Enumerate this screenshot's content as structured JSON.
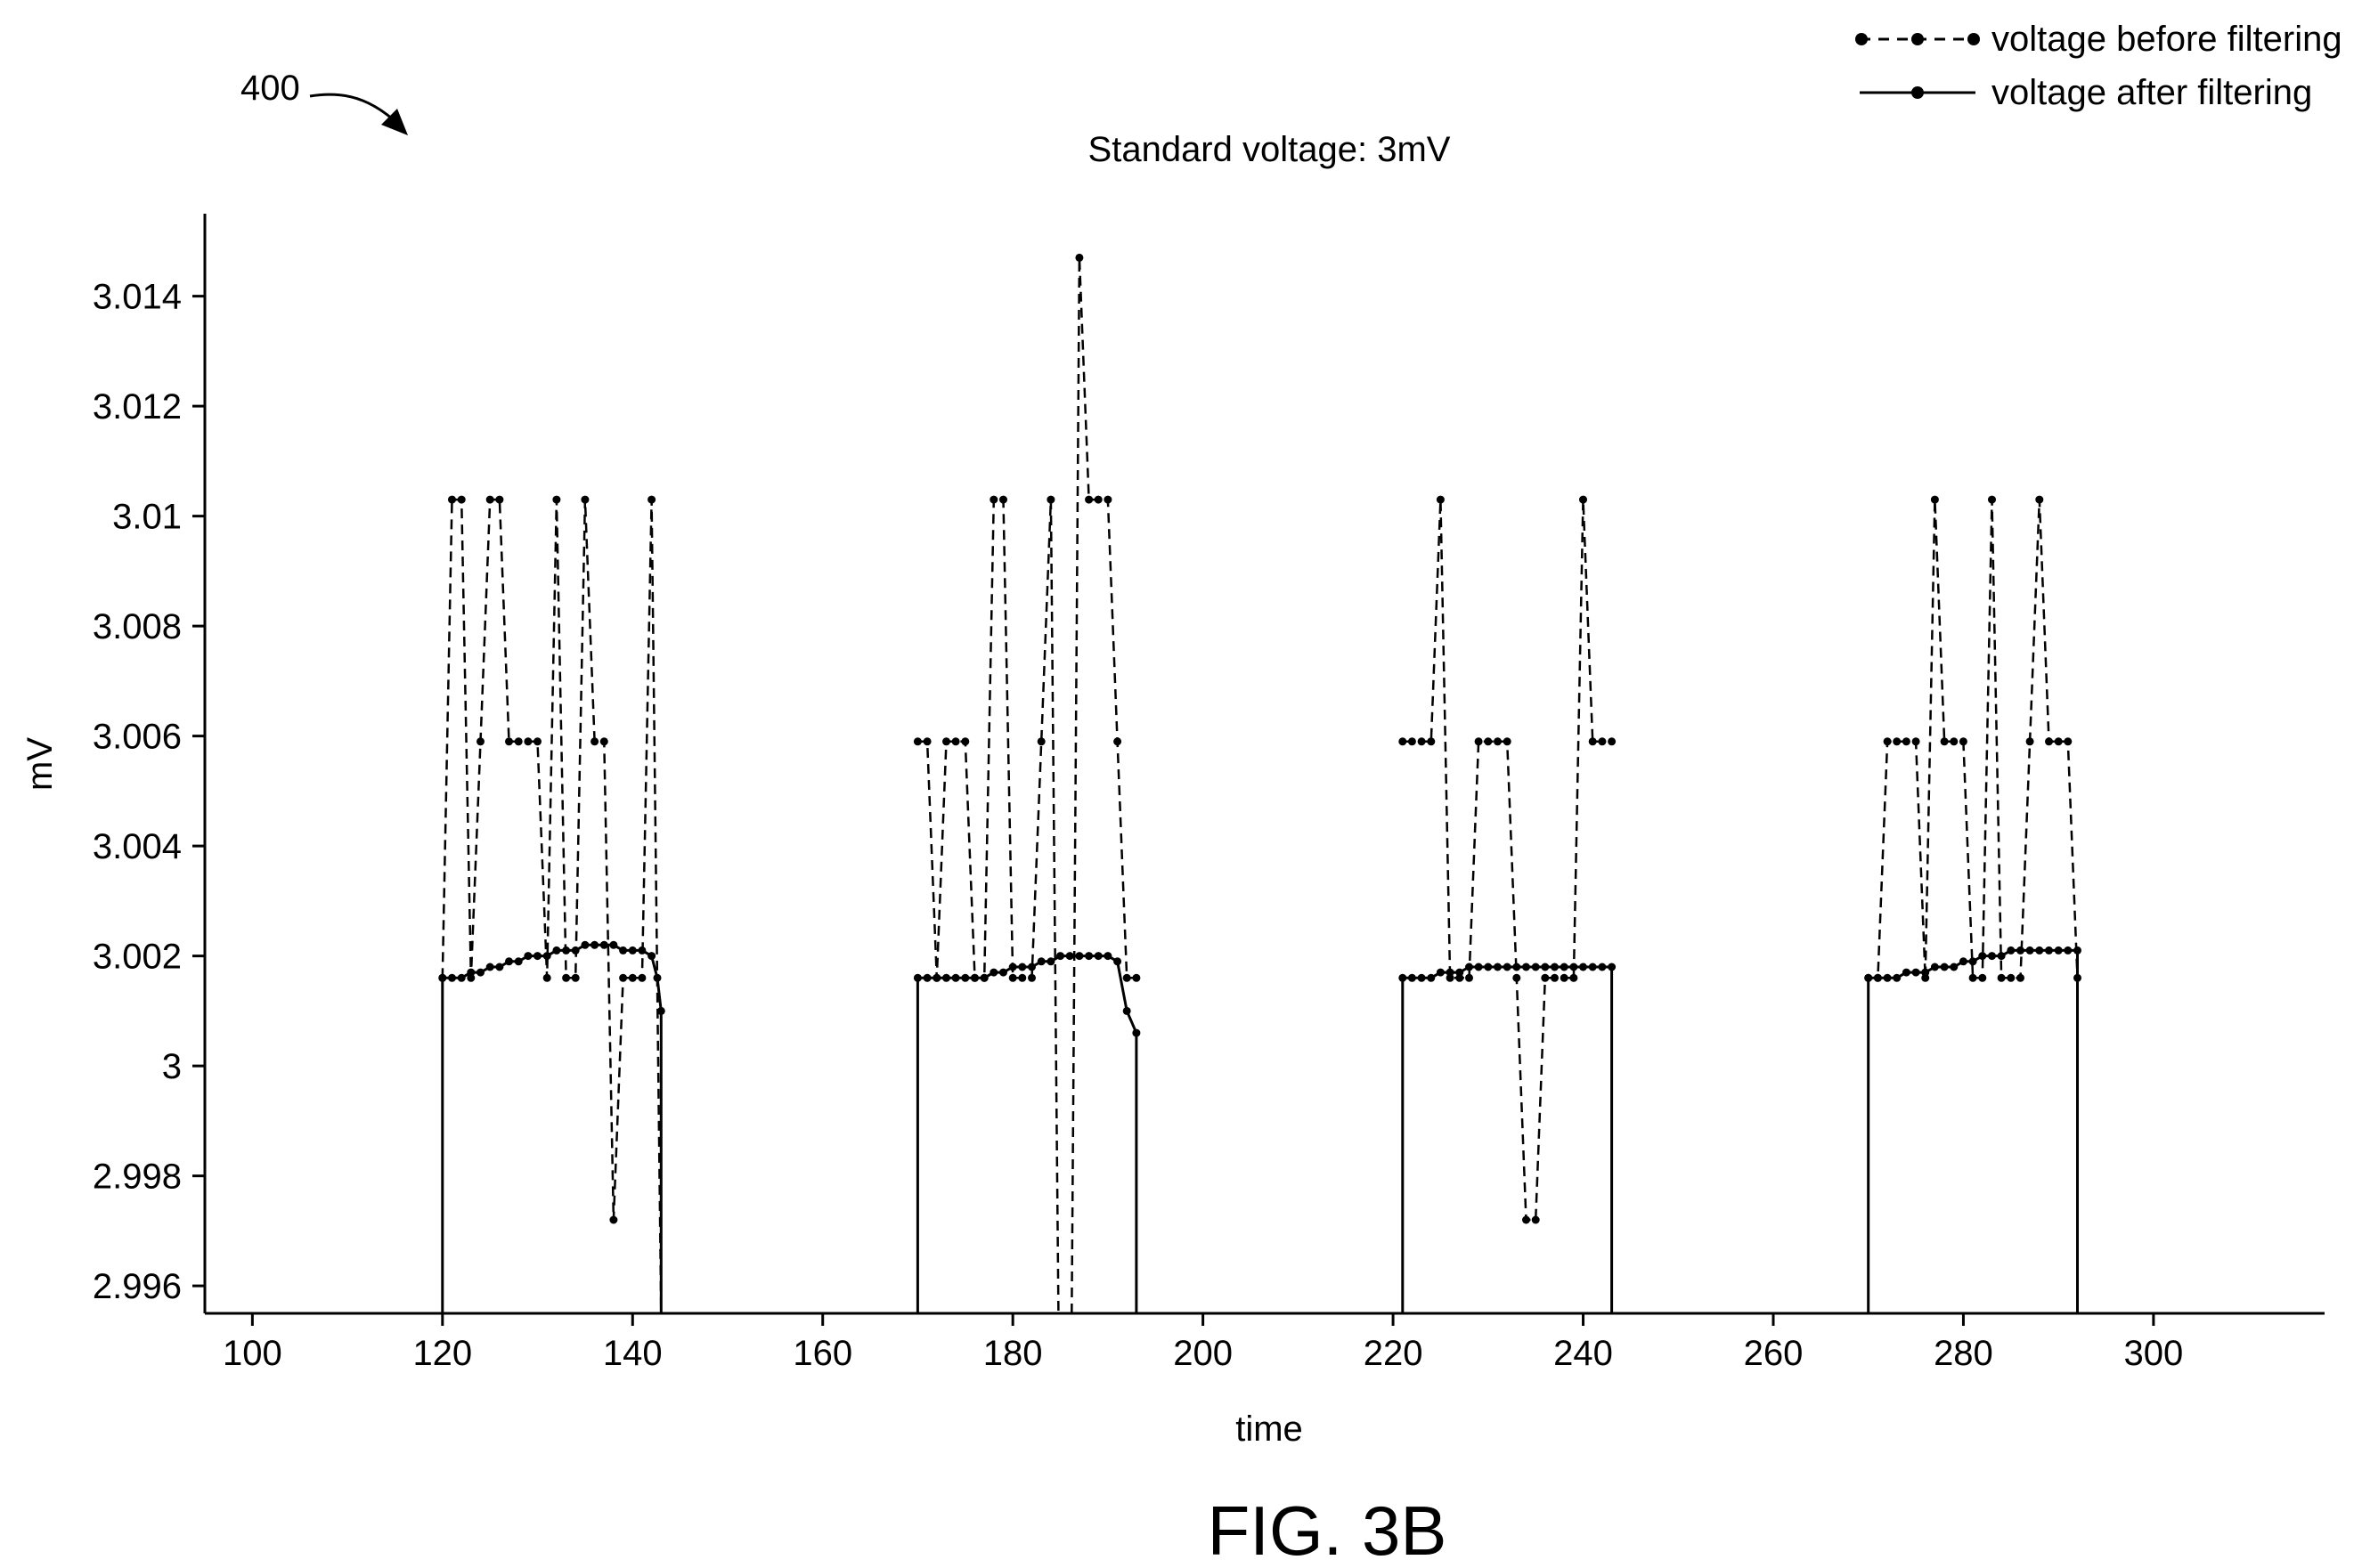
{
  "figure": {
    "ref_label": "400",
    "caption": "FIG. 3B"
  },
  "chart_data": {
    "type": "line",
    "title": "Standard voltage: 3mV",
    "xlabel": "time",
    "ylabel": "mV",
    "xlim": [
      95,
      318
    ],
    "ylim": [
      2.9955,
      3.0155
    ],
    "xticks": [
      100,
      120,
      140,
      160,
      180,
      200,
      220,
      240,
      260,
      280,
      300
    ],
    "xtick_labels": [
      "100",
      "120",
      "140",
      "160",
      "180",
      "200",
      "220",
      "240",
      "260",
      "280",
      "300"
    ],
    "yticks": [
      2.996,
      2.998,
      3.0,
      3.002,
      3.004,
      3.006,
      3.008,
      3.01,
      3.012,
      3.014
    ],
    "ytick_labels": [
      "2.996",
      "2.998",
      "3",
      "3.002",
      "3.004",
      "3.006",
      "3.008",
      "3.01",
      "3.012",
      "3.014"
    ],
    "grid": false,
    "legend": "top-right",
    "series": [
      {
        "name": "voltage before filtering",
        "style": "dashed",
        "color": "#000000",
        "segments": [
          [
            [
              120,
              3.0016
            ],
            [
              121,
              3.0103
            ],
            [
              122,
              3.0103
            ],
            [
              123,
              3.0016
            ],
            [
              124,
              3.0059
            ],
            [
              125,
              3.0103
            ],
            [
              126,
              3.0103
            ],
            [
              127,
              3.0059
            ],
            [
              128,
              3.0059
            ],
            [
              129,
              3.0059
            ],
            [
              130,
              3.0059
            ],
            [
              131,
              3.0016
            ],
            [
              132,
              3.0103
            ],
            [
              133,
              3.0016
            ],
            [
              134,
              3.0016
            ],
            [
              135,
              3.0103
            ],
            [
              136,
              3.0059
            ],
            [
              137,
              3.0059
            ],
            [
              138,
              2.9972
            ],
            [
              139,
              3.0016
            ],
            [
              140,
              3.0016
            ],
            [
              141,
              3.0016
            ],
            [
              142,
              3.0103
            ],
            [
              143,
              2.9955
            ]
          ],
          [
            [
              170,
              3.0059
            ],
            [
              171,
              3.0059
            ],
            [
              172,
              3.0016
            ],
            [
              173,
              3.0059
            ],
            [
              174,
              3.0059
            ],
            [
              175,
              3.0059
            ],
            [
              176,
              3.0016
            ],
            [
              177,
              3.0016
            ],
            [
              178,
              3.0103
            ],
            [
              179,
              3.0103
            ],
            [
              180,
              3.0016
            ],
            [
              181,
              3.0016
            ],
            [
              182,
              3.0016
            ],
            [
              183,
              3.0059
            ],
            [
              184,
              3.0103
            ],
            [
              184.8,
              2.9955
            ]
          ],
          [
            [
              186.2,
              2.9955
            ],
            [
              187,
              3.0147
            ],
            [
              188,
              3.0103
            ],
            [
              189,
              3.0103
            ],
            [
              190,
              3.0103
            ],
            [
              191,
              3.0059
            ],
            [
              192,
              3.0016
            ],
            [
              193,
              3.0016
            ]
          ],
          [
            [
              221,
              3.0059
            ],
            [
              222,
              3.0059
            ],
            [
              223,
              3.0059
            ],
            [
              224,
              3.0059
            ],
            [
              225,
              3.0103
            ],
            [
              226,
              3.0016
            ],
            [
              227,
              3.0016
            ],
            [
              228,
              3.0016
            ],
            [
              229,
              3.0059
            ],
            [
              230,
              3.0059
            ],
            [
              231,
              3.0059
            ],
            [
              232,
              3.0059
            ],
            [
              233,
              3.0016
            ],
            [
              234,
              2.9972
            ],
            [
              235,
              2.9972
            ],
            [
              236,
              3.0016
            ],
            [
              237,
              3.0016
            ],
            [
              238,
              3.0016
            ],
            [
              239,
              3.0016
            ],
            [
              240,
              3.0103
            ],
            [
              241,
              3.0059
            ],
            [
              242,
              3.0059
            ],
            [
              243,
              3.0059
            ]
          ],
          [
            [
              270,
              3.0016
            ],
            [
              271,
              3.0016
            ],
            [
              272,
              3.0059
            ],
            [
              273,
              3.0059
            ],
            [
              274,
              3.0059
            ],
            [
              275,
              3.0059
            ],
            [
              276,
              3.0016
            ],
            [
              277,
              3.0103
            ],
            [
              278,
              3.0059
            ],
            [
              279,
              3.0059
            ],
            [
              280,
              3.0059
            ],
            [
              281,
              3.0016
            ],
            [
              282,
              3.0016
            ],
            [
              283,
              3.0103
            ],
            [
              284,
              3.0016
            ],
            [
              285,
              3.0016
            ],
            [
              286,
              3.0016
            ],
            [
              287,
              3.0059
            ],
            [
              288,
              3.0103
            ],
            [
              289,
              3.0059
            ],
            [
              290,
              3.0059
            ],
            [
              291,
              3.0059
            ],
            [
              292,
              3.0016
            ]
          ]
        ]
      },
      {
        "name": "voltage after filtering",
        "style": "solid",
        "color": "#000000",
        "segments": [
          [
            [
              120,
              2.9955
            ],
            [
              120,
              3.0016
            ],
            [
              121,
              3.0016
            ],
            [
              122,
              3.0016
            ],
            [
              123,
              3.0017
            ],
            [
              124,
              3.0017
            ],
            [
              125,
              3.0018
            ],
            [
              126,
              3.0018
            ],
            [
              127,
              3.0019
            ],
            [
              128,
              3.0019
            ],
            [
              129,
              3.002
            ],
            [
              130,
              3.002
            ],
            [
              131,
              3.002
            ],
            [
              132,
              3.0021
            ],
            [
              133,
              3.0021
            ],
            [
              134,
              3.0021
            ],
            [
              135,
              3.0022
            ],
            [
              136,
              3.0022
            ],
            [
              137,
              3.0022
            ],
            [
              138,
              3.0022
            ],
            [
              139,
              3.0021
            ],
            [
              140,
              3.0021
            ],
            [
              141,
              3.0021
            ],
            [
              142,
              3.002
            ],
            [
              142.6,
              3.0016
            ],
            [
              143,
              3.001
            ],
            [
              143,
              2.9955
            ]
          ],
          [
            [
              170,
              2.9955
            ],
            [
              170,
              3.0016
            ],
            [
              171,
              3.0016
            ],
            [
              172,
              3.0016
            ],
            [
              173,
              3.0016
            ],
            [
              174,
              3.0016
            ],
            [
              175,
              3.0016
            ],
            [
              176,
              3.0016
            ],
            [
              177,
              3.0016
            ],
            [
              178,
              3.0017
            ],
            [
              179,
              3.0017
            ],
            [
              180,
              3.0018
            ],
            [
              181,
              3.0018
            ],
            [
              182,
              3.0018
            ],
            [
              183,
              3.0019
            ],
            [
              184,
              3.0019
            ],
            [
              185,
              3.002
            ],
            [
              186,
              3.002
            ],
            [
              187,
              3.002
            ],
            [
              188,
              3.002
            ],
            [
              189,
              3.002
            ],
            [
              190,
              3.002
            ],
            [
              191,
              3.0019
            ],
            [
              192,
              3.001
            ],
            [
              193,
              3.0006
            ],
            [
              193,
              2.9955
            ]
          ],
          [
            [
              221,
              2.9955
            ],
            [
              221,
              3.0016
            ],
            [
              222,
              3.0016
            ],
            [
              223,
              3.0016
            ],
            [
              224,
              3.0016
            ],
            [
              225,
              3.0017
            ],
            [
              226,
              3.0017
            ],
            [
              227,
              3.0017
            ],
            [
              228,
              3.0018
            ],
            [
              229,
              3.0018
            ],
            [
              230,
              3.0018
            ],
            [
              231,
              3.0018
            ],
            [
              232,
              3.0018
            ],
            [
              233,
              3.0018
            ],
            [
              234,
              3.0018
            ],
            [
              235,
              3.0018
            ],
            [
              236,
              3.0018
            ],
            [
              237,
              3.0018
            ],
            [
              238,
              3.0018
            ],
            [
              239,
              3.0018
            ],
            [
              240,
              3.0018
            ],
            [
              241,
              3.0018
            ],
            [
              242,
              3.0018
            ],
            [
              243,
              3.0018
            ],
            [
              243,
              2.9955
            ]
          ],
          [
            [
              270,
              2.9955
            ],
            [
              270,
              3.0016
            ],
            [
              271,
              3.0016
            ],
            [
              272,
              3.0016
            ],
            [
              273,
              3.0016
            ],
            [
              274,
              3.0017
            ],
            [
              275,
              3.0017
            ],
            [
              276,
              3.0017
            ],
            [
              277,
              3.0018
            ],
            [
              278,
              3.0018
            ],
            [
              279,
              3.0018
            ],
            [
              280,
              3.0019
            ],
            [
              281,
              3.0019
            ],
            [
              282,
              3.002
            ],
            [
              283,
              3.002
            ],
            [
              284,
              3.002
            ],
            [
              285,
              3.0021
            ],
            [
              286,
              3.0021
            ],
            [
              287,
              3.0021
            ],
            [
              288,
              3.0021
            ],
            [
              289,
              3.0021
            ],
            [
              290,
              3.0021
            ],
            [
              291,
              3.0021
            ],
            [
              292,
              3.0021
            ],
            [
              292,
              2.9955
            ]
          ]
        ]
      }
    ]
  }
}
